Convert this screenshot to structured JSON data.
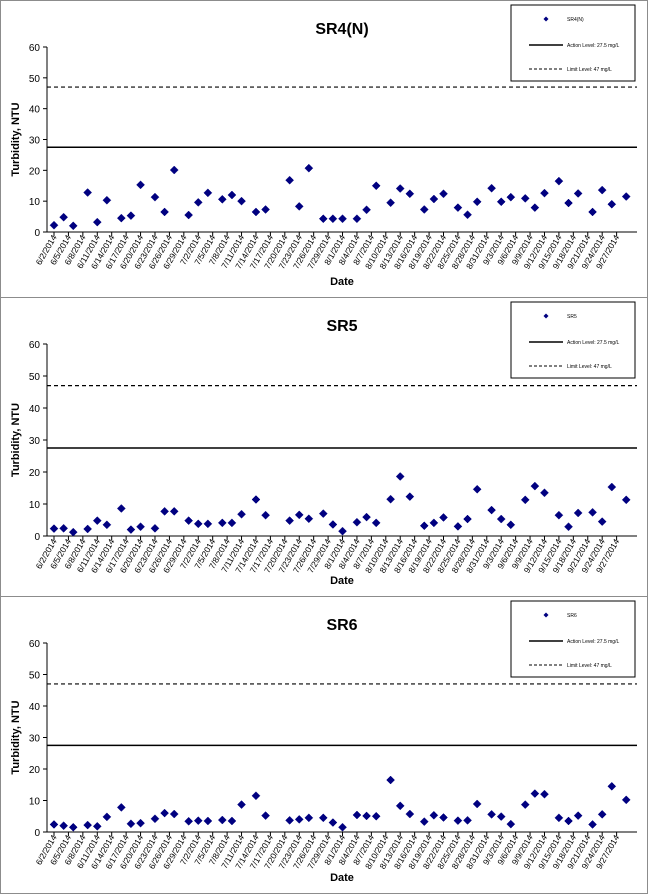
{
  "chart_data": [
    {
      "type": "scatter",
      "title": "SR4(N)",
      "xlabel": "Date",
      "ylabel": "Turbidity, NTU",
      "ylim": [
        0,
        60
      ],
      "yticks": [
        "0",
        "10",
        "20",
        "30",
        "40",
        "50",
        "60"
      ],
      "grid": false,
      "legend_position": "top-right",
      "legend": [
        "SR4(N)",
        "Action Level: 27.5 mg/L",
        "Limit Level: 47 mg/L"
      ],
      "action_level": 27.5,
      "limit_level": 47,
      "x_ticks": [
        "6/2/2014",
        "6/5/2014",
        "6/8/2014",
        "6/11/2014",
        "6/14/2014",
        "6/17/2014",
        "6/20/2014",
        "6/23/2014",
        "6/26/2014",
        "6/29/2014",
        "7/2/2014",
        "7/5/2014",
        "7/8/2014",
        "7/11/2014",
        "7/14/2014",
        "7/17/2014",
        "7/20/2014",
        "7/23/2014",
        "7/26/2014",
        "7/29/2014",
        "8/1/2014",
        "8/4/2014",
        "8/7/2014",
        "8/10/2014",
        "8/13/2014",
        "8/16/2014",
        "8/19/2014",
        "8/22/2014",
        "8/25/2014",
        "8/28/2014",
        "8/31/2014",
        "9/3/2014",
        "9/6/2014",
        "9/9/2014",
        "9/12/2014",
        "9/15/2014",
        "9/18/2014",
        "9/21/2014",
        "9/24/2014",
        "9/27/2014"
      ],
      "series": [
        {
          "name": "SR4(N)",
          "color": "#000080",
          "points": [
            [
              "6/2/2014",
              2.2
            ],
            [
              "6/4/2014",
              4.8
            ],
            [
              "6/6/2014",
              2.0
            ],
            [
              "6/9/2014",
              12.8
            ],
            [
              "6/11/2014",
              3.2
            ],
            [
              "6/13/2014",
              10.3
            ],
            [
              "6/16/2014",
              4.5
            ],
            [
              "6/18/2014",
              5.3
            ],
            [
              "6/20/2014",
              15.3
            ],
            [
              "6/23/2014",
              11.3
            ],
            [
              "6/25/2014",
              6.5
            ],
            [
              "6/27/2014",
              20.1
            ],
            [
              "6/30/2014",
              5.5
            ],
            [
              "7/2/2014",
              9.6
            ],
            [
              "7/4/2014",
              12.7
            ],
            [
              "7/7/2014",
              10.6
            ],
            [
              "7/9/2014",
              12.0
            ],
            [
              "7/11/2014",
              10.0
            ],
            [
              "7/14/2014",
              6.5
            ],
            [
              "7/16/2014",
              7.3
            ],
            [
              "7/21/2014",
              16.8
            ],
            [
              "7/23/2014",
              8.3
            ],
            [
              "7/25/2014",
              20.7
            ],
            [
              "7/28/2014",
              4.3
            ],
            [
              "7/30/2014",
              4.3
            ],
            [
              "8/1/2014",
              4.3
            ],
            [
              "8/4/2014",
              4.3
            ],
            [
              "8/6/2014",
              7.2
            ],
            [
              "8/8/2014",
              15.0
            ],
            [
              "8/11/2014",
              9.5
            ],
            [
              "8/13/2014",
              14.1
            ],
            [
              "8/15/2014",
              12.4
            ],
            [
              "8/18/2014",
              7.3
            ],
            [
              "8/20/2014",
              10.7
            ],
            [
              "8/22/2014",
              12.4
            ],
            [
              "8/25/2014",
              7.9
            ],
            [
              "8/27/2014",
              5.6
            ],
            [
              "8/29/2014",
              9.8
            ],
            [
              "9/1/2014",
              14.2
            ],
            [
              "9/3/2014",
              9.8
            ],
            [
              "9/5/2014",
              11.3
            ],
            [
              "9/8/2014",
              10.9
            ],
            [
              "9/10/2014",
              7.9
            ],
            [
              "9/12/2014",
              12.6
            ],
            [
              "9/15/2014",
              16.5
            ],
            [
              "9/17/2014",
              9.4
            ],
            [
              "9/19/2014",
              12.5
            ],
            [
              "9/22/2014",
              6.5
            ],
            [
              "9/24/2014",
              13.6
            ],
            [
              "9/26/2014",
              9.0
            ],
            [
              "9/29/2014",
              11.5
            ]
          ]
        }
      ]
    },
    {
      "type": "scatter",
      "title": "SR5",
      "xlabel": "Date",
      "ylabel": "Turbidity, NTU",
      "ylim": [
        0,
        60
      ],
      "yticks": [
        "0",
        "10",
        "20",
        "30",
        "40",
        "50",
        "60"
      ],
      "grid": false,
      "legend_position": "top-right",
      "legend": [
        "SR5",
        "Action Level: 27.5 mg/L",
        "Limit Level: 47 mg/L"
      ],
      "action_level": 27.5,
      "limit_level": 47,
      "x_ticks": [
        "6/2/2014",
        "6/5/2014",
        "6/8/2014",
        "6/11/2014",
        "6/14/2014",
        "6/17/2014",
        "6/20/2014",
        "6/23/2014",
        "6/26/2014",
        "6/29/2014",
        "7/2/2014",
        "7/5/2014",
        "7/8/2014",
        "7/11/2014",
        "7/14/2014",
        "7/17/2014",
        "7/20/2014",
        "7/23/2014",
        "7/26/2014",
        "7/29/2014",
        "8/1/2014",
        "8/4/2014",
        "8/7/2014",
        "8/10/2014",
        "8/13/2014",
        "8/16/2014",
        "8/19/2014",
        "8/22/2014",
        "8/25/2014",
        "8/28/2014",
        "8/31/2014",
        "9/3/2014",
        "9/6/2014",
        "9/9/2014",
        "9/12/2014",
        "9/15/2014",
        "9/18/2014",
        "9/21/2014",
        "9/24/2014",
        "9/27/2014"
      ],
      "series": [
        {
          "name": "SR5",
          "color": "#000080",
          "points": [
            [
              "6/2/2014",
              2.3
            ],
            [
              "6/4/2014",
              2.4
            ],
            [
              "6/6/2014",
              1.2
            ],
            [
              "6/9/2014",
              2.2
            ],
            [
              "6/11/2014",
              4.8
            ],
            [
              "6/13/2014",
              3.5
            ],
            [
              "6/16/2014",
              8.6
            ],
            [
              "6/18/2014",
              2.0
            ],
            [
              "6/20/2014",
              2.9
            ],
            [
              "6/23/2014",
              2.4
            ],
            [
              "6/25/2014",
              7.7
            ],
            [
              "6/27/2014",
              7.7
            ],
            [
              "6/30/2014",
              4.8
            ],
            [
              "7/2/2014",
              3.8
            ],
            [
              "7/4/2014",
              3.8
            ],
            [
              "7/7/2014",
              4.1
            ],
            [
              "7/9/2014",
              4.1
            ],
            [
              "7/11/2014",
              6.8
            ],
            [
              "7/14/2014",
              11.4
            ],
            [
              "7/16/2014",
              6.5
            ],
            [
              "7/21/2014",
              4.8
            ],
            [
              "7/23/2014",
              6.6
            ],
            [
              "7/25/2014",
              5.4
            ],
            [
              "7/28/2014",
              7.0
            ],
            [
              "7/30/2014",
              3.6
            ],
            [
              "8/1/2014",
              1.5
            ],
            [
              "8/4/2014",
              4.3
            ],
            [
              "8/6/2014",
              5.9
            ],
            [
              "8/8/2014",
              4.1
            ],
            [
              "8/11/2014",
              11.5
            ],
            [
              "8/13/2014",
              18.6
            ],
            [
              "8/15/2014",
              12.3
            ],
            [
              "8/18/2014",
              3.2
            ],
            [
              "8/20/2014",
              4.1
            ],
            [
              "8/22/2014",
              5.8
            ],
            [
              "8/25/2014",
              3.0
            ],
            [
              "8/27/2014",
              5.3
            ],
            [
              "8/29/2014",
              14.6
            ],
            [
              "9/1/2014",
              8.1
            ],
            [
              "9/3/2014",
              5.3
            ],
            [
              "9/5/2014",
              3.5
            ],
            [
              "9/8/2014",
              11.3
            ],
            [
              "9/10/2014",
              15.6
            ],
            [
              "9/12/2014",
              13.5
            ],
            [
              "9/15/2014",
              6.5
            ],
            [
              "9/17/2014",
              2.9
            ],
            [
              "9/19/2014",
              7.2
            ],
            [
              "9/22/2014",
              7.4
            ],
            [
              "9/24/2014",
              4.5
            ],
            [
              "9/26/2014",
              15.3
            ],
            [
              "9/29/2014",
              11.3
            ]
          ]
        }
      ]
    },
    {
      "type": "scatter",
      "title": "SR6",
      "xlabel": "Date",
      "ylabel": "Turbidity, NTU",
      "ylim": [
        0,
        60
      ],
      "yticks": [
        "0",
        "10",
        "20",
        "30",
        "40",
        "50",
        "60"
      ],
      "grid": false,
      "legend_position": "top-right",
      "legend": [
        "SR6",
        "Action Level: 27.5 mg/L",
        "Limit Level: 47 mg/L"
      ],
      "action_level": 27.5,
      "limit_level": 47,
      "x_ticks": [
        "6/2/2014",
        "6/5/2014",
        "6/8/2014",
        "6/11/2014",
        "6/14/2014",
        "6/17/2014",
        "6/20/2014",
        "6/23/2014",
        "6/26/2014",
        "6/29/2014",
        "7/2/2014",
        "7/5/2014",
        "7/8/2014",
        "7/11/2014",
        "7/14/2014",
        "7/17/2014",
        "7/20/2014",
        "7/23/2014",
        "7/26/2014",
        "7/29/2014",
        "8/1/2014",
        "8/4/2014",
        "8/7/2014",
        "8/10/2014",
        "8/13/2014",
        "8/16/2014",
        "8/19/2014",
        "8/22/2014",
        "8/25/2014",
        "8/28/2014",
        "8/31/2014",
        "9/3/2014",
        "9/6/2014",
        "9/9/2014",
        "9/12/2014",
        "9/15/2014",
        "9/18/2014",
        "9/21/2014",
        "9/24/2014",
        "9/27/2014"
      ],
      "series": [
        {
          "name": "SR6",
          "color": "#000080",
          "points": [
            [
              "6/2/2014",
              2.4
            ],
            [
              "6/4/2014",
              2.0
            ],
            [
              "6/6/2014",
              1.5
            ],
            [
              "6/9/2014",
              2.2
            ],
            [
              "6/11/2014",
              1.8
            ],
            [
              "6/13/2014",
              4.8
            ],
            [
              "6/16/2014",
              7.8
            ],
            [
              "6/18/2014",
              2.6
            ],
            [
              "6/20/2014",
              2.8
            ],
            [
              "6/23/2014",
              4.2
            ],
            [
              "6/25/2014",
              6.0
            ],
            [
              "6/27/2014",
              5.7
            ],
            [
              "6/30/2014",
              3.4
            ],
            [
              "7/2/2014",
              3.6
            ],
            [
              "7/4/2014",
              3.5
            ],
            [
              "7/7/2014",
              3.8
            ],
            [
              "7/9/2014",
              3.5
            ],
            [
              "7/11/2014",
              8.7
            ],
            [
              "7/14/2014",
              11.5
            ],
            [
              "7/16/2014",
              5.2
            ],
            [
              "7/21/2014",
              3.7
            ],
            [
              "7/23/2014",
              4.0
            ],
            [
              "7/25/2014",
              4.5
            ],
            [
              "7/28/2014",
              4.5
            ],
            [
              "7/30/2014",
              3.0
            ],
            [
              "8/1/2014",
              1.5
            ],
            [
              "8/4/2014",
              5.4
            ],
            [
              "8/6/2014",
              5.1
            ],
            [
              "8/8/2014",
              5.0
            ],
            [
              "8/11/2014",
              16.5
            ],
            [
              "8/13/2014",
              8.3
            ],
            [
              "8/15/2014",
              5.7
            ],
            [
              "8/18/2014",
              3.3
            ],
            [
              "8/20/2014",
              5.3
            ],
            [
              "8/22/2014",
              4.6
            ],
            [
              "8/25/2014",
              3.6
            ],
            [
              "8/27/2014",
              3.7
            ],
            [
              "8/29/2014",
              8.9
            ],
            [
              "9/1/2014",
              5.6
            ],
            [
              "9/3/2014",
              4.9
            ],
            [
              "9/5/2014",
              2.5
            ],
            [
              "9/8/2014",
              8.7
            ],
            [
              "9/10/2014",
              12.2
            ],
            [
              "9/12/2014",
              12.0
            ],
            [
              "9/15/2014",
              4.5
            ],
            [
              "9/17/2014",
              3.5
            ],
            [
              "9/19/2014",
              5.2
            ],
            [
              "9/22/2014",
              2.4
            ],
            [
              "9/24/2014",
              5.6
            ],
            [
              "9/26/2014",
              14.5
            ],
            [
              "9/29/2014",
              10.2
            ]
          ]
        }
      ]
    }
  ]
}
